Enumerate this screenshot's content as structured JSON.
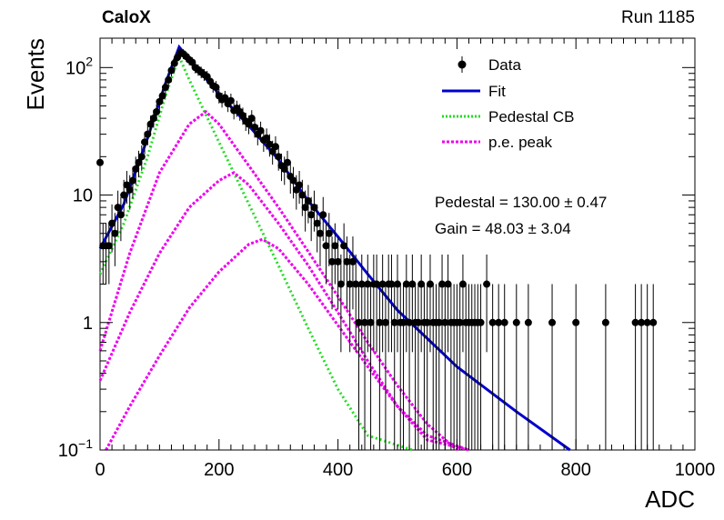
{
  "header": {
    "experiment": "CaloX",
    "run": "Run 1185"
  },
  "fit_results": {
    "pedestal": "Pedestal = 130.00 ± 0.47",
    "gain": "Gain = 48.03 ± 3.04"
  },
  "chart_data": {
    "type": "scatter",
    "xlabel": "ADC",
    "ylabel": "Events",
    "xlim": [
      0,
      1000
    ],
    "ylim": [
      0.1,
      170
    ],
    "yscale": "log",
    "xticks": [
      0,
      200,
      400,
      600,
      800,
      1000
    ],
    "yticks": [
      {
        "value": 0.1,
        "base": "10",
        "exp": "−1"
      },
      {
        "value": 1,
        "label": "1"
      },
      {
        "value": 10,
        "label": "10"
      },
      {
        "value": 100,
        "base": "10",
        "exp": "2"
      }
    ],
    "grid": false,
    "legend_position": "top-right",
    "legend": [
      {
        "label": "Data",
        "style": "marker"
      },
      {
        "label": "Fit",
        "style": "solid",
        "color": "#0000cc"
      },
      {
        "label": "Pedestal CB",
        "style": "dotted",
        "color": "#22dd22"
      },
      {
        "label": "p.e. peak",
        "style": "dotted",
        "color": "#ee00ee"
      }
    ],
    "colors": {
      "fit": "#0000cc",
      "pedestal": "#22dd22",
      "pe": "#ee00ee",
      "data": "#000000"
    },
    "series": [
      {
        "name": "Data",
        "kind": "points",
        "points": [
          [
            0,
            18
          ],
          [
            5,
            4
          ],
          [
            10,
            4
          ],
          [
            15,
            4
          ],
          [
            20,
            6
          ],
          [
            25,
            5
          ],
          [
            30,
            8
          ],
          [
            35,
            7
          ],
          [
            40,
            10
          ],
          [
            45,
            12
          ],
          [
            50,
            11
          ],
          [
            55,
            13
          ],
          [
            60,
            16
          ],
          [
            65,
            18
          ],
          [
            70,
            20
          ],
          [
            75,
            26
          ],
          [
            80,
            30
          ],
          [
            85,
            36
          ],
          [
            90,
            40
          ],
          [
            95,
            45
          ],
          [
            100,
            54
          ],
          [
            105,
            60
          ],
          [
            110,
            70
          ],
          [
            115,
            80
          ],
          [
            120,
            95
          ],
          [
            125,
            108
          ],
          [
            130,
            120
          ],
          [
            135,
            130
          ],
          [
            140,
            128
          ],
          [
            145,
            122
          ],
          [
            150,
            115
          ],
          [
            155,
            110
          ],
          [
            160,
            100
          ],
          [
            165,
            96
          ],
          [
            170,
            92
          ],
          [
            175,
            88
          ],
          [
            180,
            85
          ],
          [
            185,
            78
          ],
          [
            190,
            72
          ],
          [
            195,
            70
          ],
          [
            200,
            60
          ],
          [
            205,
            56
          ],
          [
            210,
            58
          ],
          [
            215,
            52
          ],
          [
            220,
            55
          ],
          [
            225,
            46
          ],
          [
            230,
            48
          ],
          [
            235,
            45
          ],
          [
            240,
            42
          ],
          [
            245,
            38
          ],
          [
            250,
            36
          ],
          [
            255,
            40
          ],
          [
            260,
            34
          ],
          [
            265,
            30
          ],
          [
            270,
            32
          ],
          [
            275,
            27
          ],
          [
            280,
            28
          ],
          [
            285,
            25
          ],
          [
            290,
            22
          ],
          [
            295,
            24
          ],
          [
            300,
            20
          ],
          [
            305,
            17
          ],
          [
            310,
            16
          ],
          [
            315,
            18
          ],
          [
            320,
            14
          ],
          [
            325,
            13
          ],
          [
            330,
            11
          ],
          [
            335,
            12
          ],
          [
            340,
            10
          ],
          [
            345,
            8
          ],
          [
            350,
            9
          ],
          [
            355,
            7
          ],
          [
            360,
            8
          ],
          [
            365,
            6
          ],
          [
            370,
            5
          ],
          [
            375,
            7
          ],
          [
            380,
            4
          ],
          [
            385,
            5
          ],
          [
            390,
            3
          ],
          [
            395,
            4
          ],
          [
            400,
            3
          ],
          [
            405,
            2
          ],
          [
            410,
            4
          ],
          [
            415,
            3
          ],
          [
            420,
            2
          ],
          [
            425,
            3
          ],
          [
            430,
            2
          ],
          [
            435,
            1
          ],
          [
            440,
            2
          ],
          [
            445,
            1
          ],
          [
            450,
            2
          ],
          [
            455,
            1
          ],
          [
            460,
            2
          ],
          [
            465,
            2
          ],
          [
            470,
            1
          ],
          [
            475,
            2
          ],
          [
            480,
            1
          ],
          [
            485,
            2
          ],
          [
            490,
            2
          ],
          [
            495,
            1
          ],
          [
            500,
            2
          ],
          [
            505,
            1
          ],
          [
            510,
            1
          ],
          [
            515,
            2
          ],
          [
            520,
            1
          ],
          [
            525,
            2
          ],
          [
            530,
            1
          ],
          [
            535,
            1
          ],
          [
            540,
            2
          ],
          [
            545,
            1
          ],
          [
            550,
            1
          ],
          [
            555,
            2
          ],
          [
            560,
            1
          ],
          [
            565,
            1
          ],
          [
            570,
            1
          ],
          [
            575,
            2
          ],
          [
            580,
            1
          ],
          [
            585,
            2
          ],
          [
            590,
            1
          ],
          [
            595,
            1
          ],
          [
            600,
            1
          ],
          [
            605,
            1
          ],
          [
            610,
            2
          ],
          [
            615,
            1
          ],
          [
            620,
            1
          ],
          [
            625,
            1
          ],
          [
            630,
            1
          ],
          [
            635,
            1
          ],
          [
            640,
            1
          ],
          [
            650,
            2
          ],
          [
            660,
            1
          ],
          [
            670,
            1
          ],
          [
            680,
            1
          ],
          [
            700,
            1
          ],
          [
            720,
            1
          ],
          [
            760,
            1
          ],
          [
            800,
            1
          ],
          [
            850,
            1
          ],
          [
            900,
            1
          ],
          [
            910,
            1
          ],
          [
            920,
            1
          ],
          [
            930,
            1
          ]
        ]
      },
      {
        "name": "Fit",
        "kind": "line",
        "points": [
          [
            0,
            3.8
          ],
          [
            40,
            8.5
          ],
          [
            80,
            28
          ],
          [
            110,
            75
          ],
          [
            133,
            145
          ],
          [
            160,
            102
          ],
          [
            200,
            62
          ],
          [
            250,
            35
          ],
          [
            300,
            19
          ],
          [
            350,
            9
          ],
          [
            400,
            4.7
          ],
          [
            450,
            2.4
          ],
          [
            500,
            1.25
          ],
          [
            600,
            0.45
          ],
          [
            700,
            0.2
          ],
          [
            790,
            0.1
          ]
        ]
      },
      {
        "name": "Pedestal CB",
        "kind": "line",
        "points": [
          [
            0,
            2.4
          ],
          [
            40,
            6
          ],
          [
            80,
            20
          ],
          [
            110,
            60
          ],
          [
            133,
            122
          ],
          [
            150,
            80
          ],
          [
            200,
            26
          ],
          [
            250,
            8.5
          ],
          [
            300,
            2.8
          ],
          [
            350,
            0.9
          ],
          [
            400,
            0.3
          ],
          [
            450,
            0.13
          ],
          [
            525,
            0.1
          ]
        ]
      },
      {
        "name": "p.e. peak",
        "kind": "line",
        "points": [
          [
            0,
            0.6
          ],
          [
            50,
            3.5
          ],
          [
            100,
            15
          ],
          [
            150,
            36
          ],
          [
            178,
            45
          ],
          [
            200,
            36
          ],
          [
            250,
            17
          ],
          [
            300,
            8
          ],
          [
            350,
            3.6
          ],
          [
            400,
            1.6
          ],
          [
            450,
            0.7
          ],
          [
            500,
            0.32
          ],
          [
            550,
            0.16
          ],
          [
            600,
            0.1
          ]
        ]
      },
      {
        "name": "p.e. peak",
        "kind": "line",
        "points": [
          [
            0,
            0.35
          ],
          [
            50,
            1.2
          ],
          [
            100,
            3.5
          ],
          [
            150,
            8
          ],
          [
            200,
            13
          ],
          [
            225,
            15
          ],
          [
            250,
            12
          ],
          [
            300,
            6
          ],
          [
            350,
            2.8
          ],
          [
            400,
            1.2
          ],
          [
            450,
            0.5
          ],
          [
            500,
            0.22
          ],
          [
            550,
            0.12
          ],
          [
            620,
            0.1
          ]
        ]
      },
      {
        "name": "p.e. peak",
        "kind": "line",
        "points": [
          [
            10,
            0.1
          ],
          [
            50,
            0.22
          ],
          [
            100,
            0.55
          ],
          [
            150,
            1.3
          ],
          [
            200,
            2.5
          ],
          [
            250,
            4.1
          ],
          [
            273,
            4.5
          ],
          [
            300,
            3.8
          ],
          [
            350,
            2.0
          ],
          [
            400,
            0.95
          ],
          [
            450,
            0.45
          ],
          [
            500,
            0.22
          ],
          [
            550,
            0.13
          ],
          [
            620,
            0.1
          ]
        ]
      }
    ]
  }
}
